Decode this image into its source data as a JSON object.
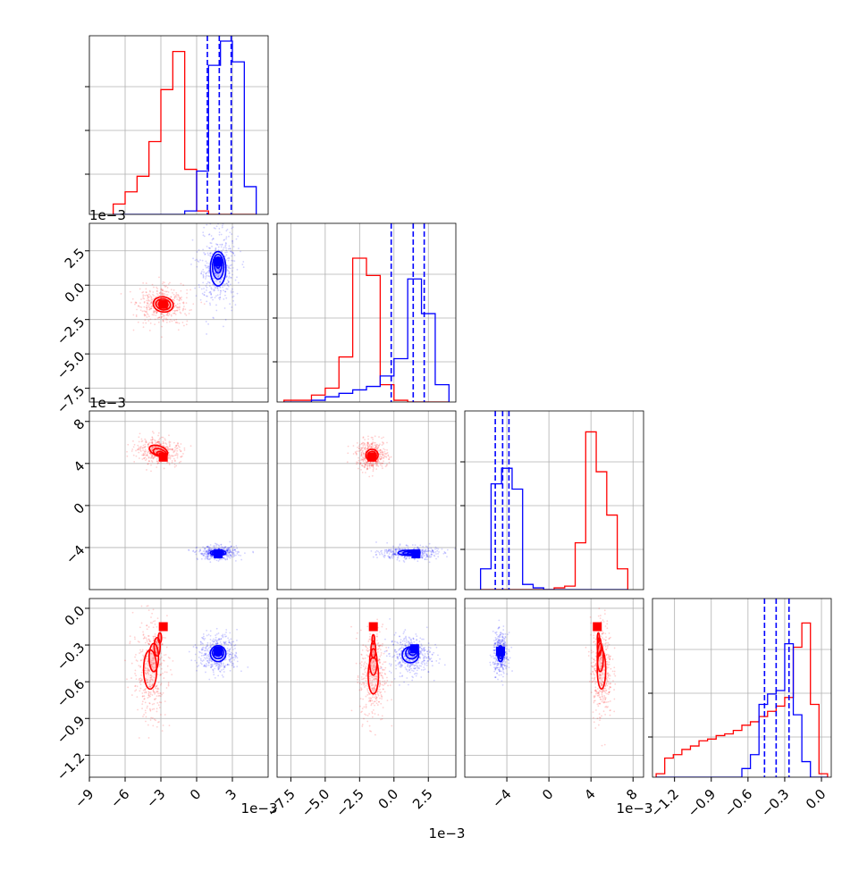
{
  "chart_data": {
    "type": "corner",
    "colors": {
      "series_red": "#ff0000",
      "series_blue": "#0000ff",
      "grid": "#b0b0b0",
      "frame": "#000000"
    },
    "grid": true,
    "series": [
      {
        "color": "#ff0000"
      },
      {
        "color": "#0000ff"
      }
    ],
    "parameters": [
      {
        "id": "p1",
        "ticks": [
          -9,
          -6,
          -3,
          0,
          3
        ],
        "tick_labels": [
          "−9",
          "−6",
          "−3",
          "0",
          "3"
        ],
        "range": [
          -9,
          6
        ],
        "offset_label": "1e−3"
      },
      {
        "id": "p2",
        "ticks": [
          -7.5,
          -5.0,
          -2.5,
          0.0,
          2.5
        ],
        "tick_labels": [
          "−7.5",
          "−5.0",
          "−2.5",
          "0.0",
          "2.5"
        ],
        "range": [
          -8.5,
          4.5
        ],
        "offset_label": "1e−3"
      },
      {
        "id": "p3",
        "ticks": [
          -4,
          0,
          4,
          8
        ],
        "tick_labels": [
          "−4",
          "0",
          "4",
          "8"
        ],
        "range": [
          -8,
          9
        ],
        "offset_label": "1e−3"
      },
      {
        "id": "p4",
        "ticks": [
          -1.2,
          -0.9,
          -0.6,
          -0.3,
          0.0
        ],
        "tick_labels": [
          "−1.2",
          "−0.9",
          "−0.6",
          "−0.3",
          "0.0"
        ],
        "range": [
          -1.38,
          0.08
        ],
        "offset_label": ""
      }
    ],
    "histograms": {
      "p1": {
        "bins": [
          -7,
          -6,
          -5,
          -4,
          -3,
          -2,
          -1,
          0,
          1,
          2,
          3,
          4,
          5
        ],
        "red": [
          0.06,
          0.13,
          0.22,
          0.42,
          0.72,
          0.94,
          0.26,
          0.02,
          0,
          0,
          0,
          0
        ],
        "blue": [
          0,
          0,
          0,
          0,
          0,
          0,
          0.02,
          0.25,
          0.86,
          1.0,
          0.88,
          0.16
        ],
        "blue_quantiles": [
          0.9,
          1.9,
          2.9
        ]
      },
      "p2": {
        "bins": [
          -8,
          -7,
          -6,
          -5,
          -4,
          -3,
          -2,
          -1,
          0,
          1,
          2,
          3,
          4
        ],
        "red": [
          0.01,
          0.01,
          0.04,
          0.08,
          0.26,
          0.83,
          0.73,
          0.1,
          0.01,
          0,
          0,
          0
        ],
        "blue": [
          0,
          0,
          0.01,
          0.03,
          0.05,
          0.07,
          0.09,
          0.15,
          0.25,
          0.71,
          0.51,
          0.1
        ],
        "blue_quantiles": [
          -0.2,
          1.4,
          2.2
        ]
      },
      "p3": {
        "bins": [
          -6.5,
          -5.5,
          -4.5,
          -3.5,
          -2.5,
          -1.5,
          -0.5,
          0.5,
          1.5,
          2.5,
          3.5,
          4.5,
          5.5,
          6.5,
          7.5
        ],
        "red": [
          0,
          0,
          0,
          0,
          0,
          0,
          0,
          0.01,
          0.02,
          0.27,
          0.91,
          0.68,
          0.43,
          0.12
        ],
        "blue": [
          0.12,
          0.61,
          0.7,
          0.58,
          0.03,
          0.01,
          0,
          0,
          0,
          0,
          0,
          0,
          0,
          0
        ],
        "blue_quantiles": [
          -5.1,
          -4.4,
          -3.8
        ]
      },
      "p4": {
        "bins": [
          -1.35,
          -1.28,
          -1.21,
          -1.14,
          -1.07,
          -1.0,
          -0.93,
          -0.86,
          -0.79,
          -0.72,
          -0.65,
          -0.58,
          -0.51,
          -0.44,
          -0.37,
          -0.3,
          -0.23,
          -0.16,
          -0.09,
          -0.02,
          0.05
        ],
        "red": [
          0.02,
          0.11,
          0.13,
          0.16,
          0.18,
          0.21,
          0.22,
          0.24,
          0.25,
          0.27,
          0.3,
          0.32,
          0.35,
          0.38,
          0.41,
          0.46,
          0.75,
          0.89,
          0.42,
          0.02
        ],
        "blue": [
          0,
          0,
          0,
          0,
          0,
          0,
          0,
          0,
          0,
          0,
          0.05,
          0.13,
          0.42,
          0.48,
          0.5,
          0.77,
          0.36,
          0.09,
          0,
          0
        ],
        "blue_quantiles": [
          -0.465,
          -0.37,
          -0.265
        ]
      }
    },
    "scatter_2d": [
      {
        "x": "p1",
        "y": "p2",
        "red": {
          "center": [
            -2.8,
            -1.4
          ],
          "spread": [
            1.7,
            1.1
          ],
          "rot": -10,
          "peak": [
            -2.8,
            -1.4
          ]
        },
        "blue": {
          "center": [
            1.8,
            1.2
          ],
          "spread": [
            1.3,
            2.5
          ],
          "rot": 0,
          "peak": [
            1.8,
            1.7
          ]
        }
      },
      {
        "x": "p1",
        "y": "p3",
        "red": {
          "center": [
            -3.2,
            5.2
          ],
          "spread": [
            1.6,
            0.95
          ],
          "rot": -20,
          "peak": [
            -2.8,
            4.6
          ]
        },
        "blue": {
          "center": [
            1.8,
            -4.5
          ],
          "spread": [
            1.3,
            0.5
          ],
          "rot": 0,
          "peak": [
            1.8,
            -4.6
          ]
        }
      },
      {
        "x": "p2",
        "y": "p3",
        "red": {
          "center": [
            -1.6,
            4.8
          ],
          "spread": [
            0.9,
            1.1
          ],
          "rot": 0,
          "peak": [
            -1.6,
            4.6
          ]
        },
        "blue": {
          "center": [
            1.1,
            -4.5
          ],
          "spread": [
            1.6,
            0.5
          ],
          "rot": 0,
          "peak": [
            1.6,
            -4.6
          ]
        }
      },
      {
        "x": "p1",
        "y": "p4",
        "red": {
          "center": [
            -3.9,
            -0.5
          ],
          "spread": [
            1.1,
            0.32
          ],
          "rot": 0,
          "peak": [
            -2.8,
            -0.15
          ]
        },
        "blue": {
          "center": [
            1.8,
            -0.37
          ],
          "spread": [
            1.3,
            0.13
          ],
          "rot": 0,
          "peak": [
            1.8,
            -0.35
          ]
        }
      },
      {
        "x": "p2",
        "y": "p4",
        "red": {
          "center": [
            -1.5,
            -0.55
          ],
          "spread": [
            0.75,
            0.3
          ],
          "rot": 0,
          "peak": [
            -1.5,
            -0.15
          ]
        },
        "blue": {
          "center": [
            1.2,
            -0.38
          ],
          "spread": [
            1.2,
            0.13
          ],
          "rot": 0,
          "peak": [
            1.5,
            -0.33
          ]
        }
      },
      {
        "x": "p3",
        "y": "p4",
        "red": {
          "center": [
            5.0,
            -0.5
          ],
          "spread": [
            0.8,
            0.32
          ],
          "rot": 0,
          "peak": [
            4.6,
            -0.15
          ]
        },
        "blue": {
          "center": [
            -4.6,
            -0.37
          ],
          "spread": [
            0.55,
            0.13
          ],
          "rot": 0,
          "peak": [
            -4.6,
            -0.35
          ]
        }
      }
    ]
  }
}
